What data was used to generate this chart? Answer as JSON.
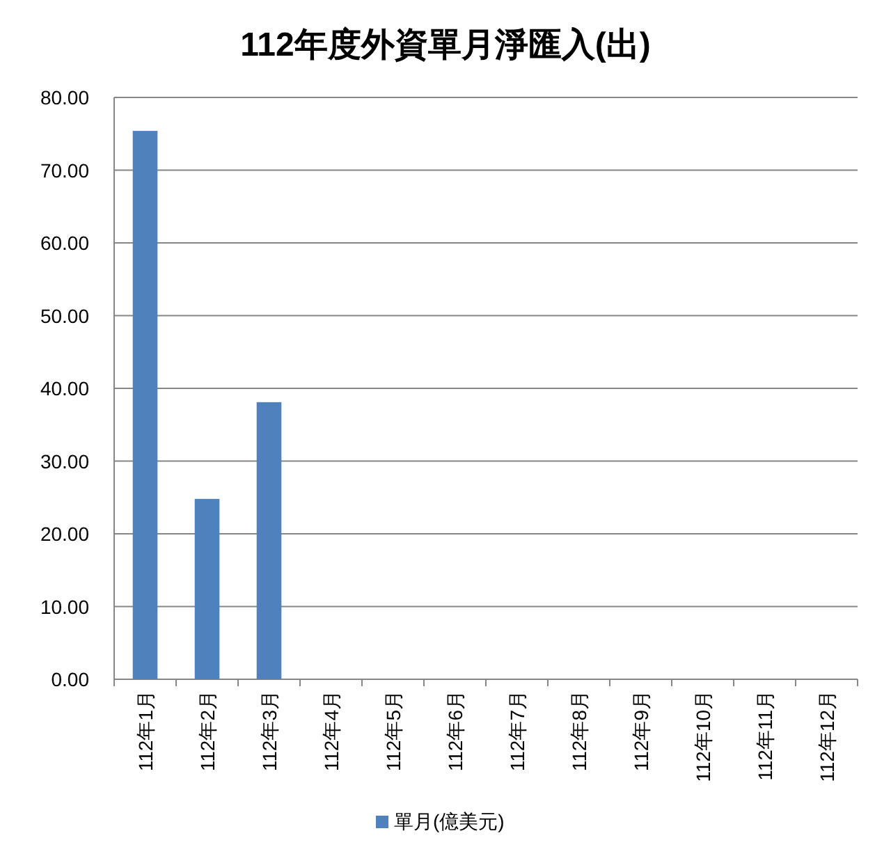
{
  "chart_data": {
    "type": "bar",
    "title": "112年度外資單月淨匯入(出)",
    "categories": [
      "112年1月",
      "112年2月",
      "112年3月",
      "112年4月",
      "112年5月",
      "112年6月",
      "112年7月",
      "112年8月",
      "112年9月",
      "112年10月",
      "112年11月",
      "112年12月"
    ],
    "series": [
      {
        "name": "單月(億美元)",
        "color": "#4f81bd",
        "values": [
          75.4,
          24.8,
          38.1,
          null,
          null,
          null,
          null,
          null,
          null,
          null,
          null,
          null
        ]
      }
    ],
    "ylim": [
      0,
      80
    ],
    "yticks": [
      {
        "value": 0,
        "label": "0.00"
      },
      {
        "value": 10,
        "label": "10.00"
      },
      {
        "value": 20,
        "label": "20.00"
      },
      {
        "value": 30,
        "label": "30.00"
      },
      {
        "value": 40,
        "label": "40.00"
      },
      {
        "value": 50,
        "label": "50.00"
      },
      {
        "value": 60,
        "label": "60.00"
      },
      {
        "value": 70,
        "label": "70.00"
      },
      {
        "value": 80,
        "label": "80.00"
      }
    ],
    "grid": "y",
    "legend": "bottom"
  }
}
